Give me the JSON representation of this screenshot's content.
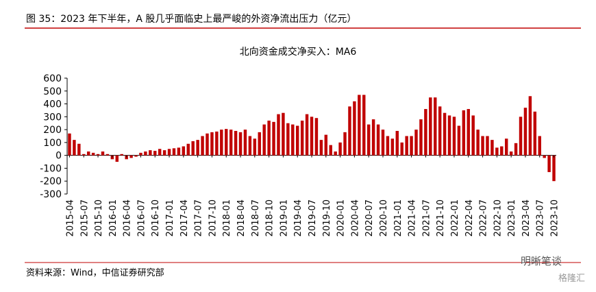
{
  "chart_data": {
    "type": "bar",
    "figure_title": "图 35：2023 年下半年，A 股几乎面临史上最严峻的外资净流出压力（亿元）",
    "title": "北向资金成交净买入：MA6",
    "source": "资料来源：Wind，中信证券研究部",
    "watermark": "明晰笔谈",
    "watermark2": "格隆汇",
    "color": "#c00000",
    "ylim": [
      -300,
      600
    ],
    "yticks": [
      -300,
      -200,
      -100,
      0,
      100,
      200,
      300,
      400,
      500,
      600
    ],
    "categories": [
      "2015-04",
      null,
      null,
      "2015-07",
      null,
      null,
      "2015-10",
      null,
      null,
      "2016-01",
      null,
      null,
      "2016-04",
      null,
      null,
      "2016-07",
      null,
      null,
      "2016-10",
      null,
      null,
      "2017-01",
      null,
      null,
      "2017-04",
      null,
      null,
      "2017-07",
      null,
      null,
      "2017-10",
      null,
      null,
      "2018-01",
      null,
      null,
      "2018-04",
      null,
      null,
      "2018-07",
      null,
      null,
      "2018-10",
      null,
      null,
      "2019-01",
      null,
      null,
      "2019-04",
      null,
      null,
      "2019-07",
      null,
      null,
      "2019-10",
      null,
      null,
      "2020-01",
      null,
      null,
      "2020-04",
      null,
      null,
      "2020-07",
      null,
      null,
      "2020-10",
      null,
      null,
      "2021-01",
      null,
      null,
      "2021-04",
      null,
      null,
      "2021-07",
      null,
      null,
      "2021-10",
      null,
      null,
      "2022-01",
      null,
      null,
      "2022-04",
      null,
      null,
      "2022-07",
      null,
      null,
      "2022-10",
      null,
      null,
      "2023-01",
      null,
      null,
      "2023-04",
      null,
      null,
      "2023-07",
      null,
      null,
      "2023-10"
    ],
    "values": [
      170,
      120,
      90,
      10,
      30,
      20,
      10,
      30,
      10,
      -30,
      -50,
      10,
      -30,
      -20,
      -10,
      20,
      30,
      40,
      35,
      50,
      40,
      50,
      55,
      60,
      70,
      90,
      110,
      120,
      150,
      170,
      180,
      185,
      200,
      205,
      200,
      190,
      180,
      200,
      150,
      130,
      180,
      240,
      270,
      260,
      320,
      330,
      250,
      240,
      230,
      270,
      320,
      300,
      290,
      120,
      160,
      80,
      30,
      100,
      180,
      380,
      420,
      470,
      470,
      240,
      280,
      240,
      200,
      150,
      130,
      190,
      100,
      150,
      150,
      200,
      280,
      360,
      450,
      450,
      380,
      330,
      310,
      300,
      230,
      350,
      360,
      310,
      200,
      150,
      150,
      120,
      60,
      70,
      130,
      30,
      95,
      300,
      370,
      460,
      340,
      150,
      -20,
      -130,
      -200
    ]
  }
}
